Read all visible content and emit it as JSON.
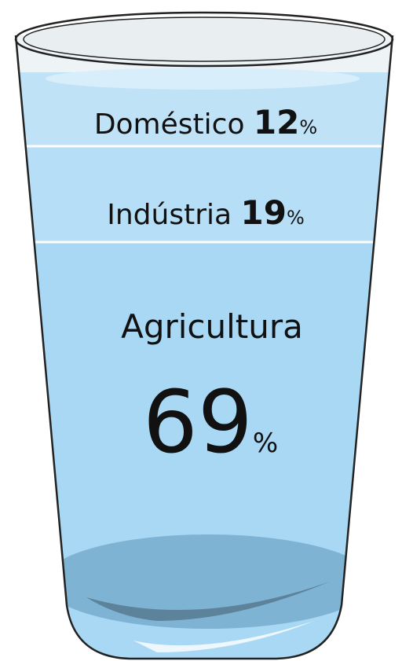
{
  "segments": [
    {
      "label": "Doméstico",
      "value": "12",
      "unit": "%"
    },
    {
      "label": "Indústria",
      "value": "19",
      "unit": "%"
    },
    {
      "label": "Agricultura",
      "value": "69",
      "unit": "%"
    }
  ]
}
